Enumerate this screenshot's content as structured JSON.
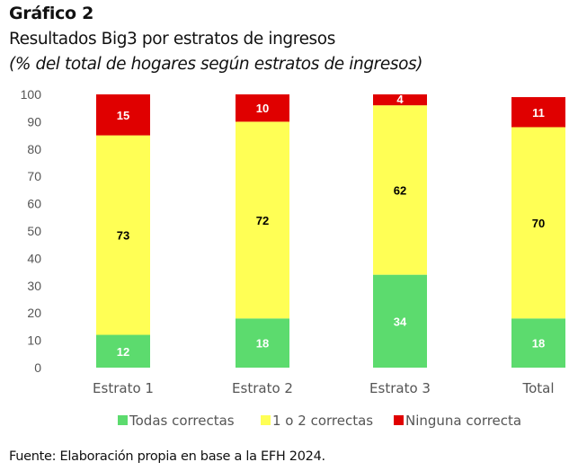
{
  "header": {
    "chart_number": "Gráfico 2",
    "title": "Resultados Big3 por estratos de ingresos",
    "subtitle": "(% del total de hogares según estratos de ingresos)"
  },
  "footer": {
    "source": "Fuente: Elaboración propia en base a la EFH 2024."
  },
  "chart_data": {
    "type": "bar",
    "stacked": true,
    "title": "Resultados Big3 por estratos de ingresos",
    "subtitle": "(% del total de hogares según estratos de ingresos)",
    "xlabel": "",
    "ylabel": "",
    "ylim": [
      0,
      100
    ],
    "yticks": [
      0,
      10,
      20,
      30,
      40,
      50,
      60,
      70,
      80,
      90,
      100
    ],
    "grid": false,
    "legend_position": "bottom",
    "categories": [
      "Estrato 1",
      "Estrato 2",
      "Estrato 3",
      "Total"
    ],
    "series": [
      {
        "name": "Todas correctas",
        "color": "#5cdb6e",
        "label_color": "#ffffff",
        "values": [
          12,
          18,
          34,
          18
        ]
      },
      {
        "name": "1 o 2 correctas",
        "color": "#ffff55",
        "label_color": "#000000",
        "values": [
          73,
          72,
          62,
          70
        ]
      },
      {
        "name": "Ninguna correcta",
        "color": "#e00000",
        "label_color": "#ffffff",
        "values": [
          15,
          10,
          4,
          11
        ]
      }
    ]
  }
}
